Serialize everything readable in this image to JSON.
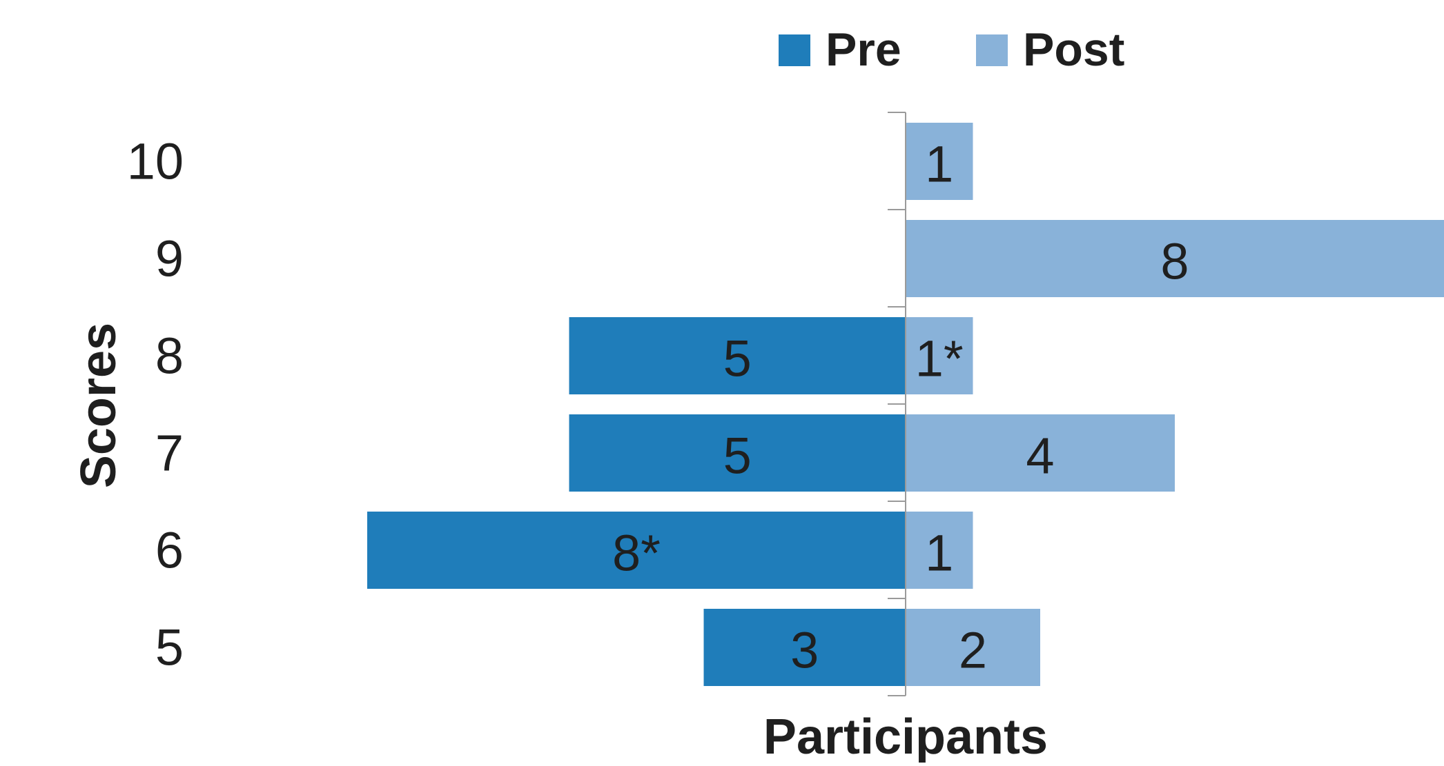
{
  "chart_data": {
    "type": "bar",
    "orientation": "horizontal",
    "layout": "diverging",
    "categories": [
      "10",
      "9",
      "8",
      "7",
      "6",
      "5"
    ],
    "series": [
      {
        "name": "Pre",
        "color": "#1f7dba",
        "direction": "left",
        "values": [
          0,
          0,
          5,
          5,
          8,
          3
        ],
        "labels": [
          "",
          "",
          "5",
          "5",
          "8*",
          "3"
        ]
      },
      {
        "name": "Post",
        "color": "#89b2d9",
        "direction": "right",
        "values": [
          1,
          8,
          1,
          4,
          1,
          2
        ],
        "labels": [
          "1",
          "8",
          "1*",
          "4",
          "1",
          "2"
        ]
      }
    ],
    "xlabel": "Participants",
    "ylabel": "Scores",
    "legend": "top-center",
    "grid": false
  }
}
